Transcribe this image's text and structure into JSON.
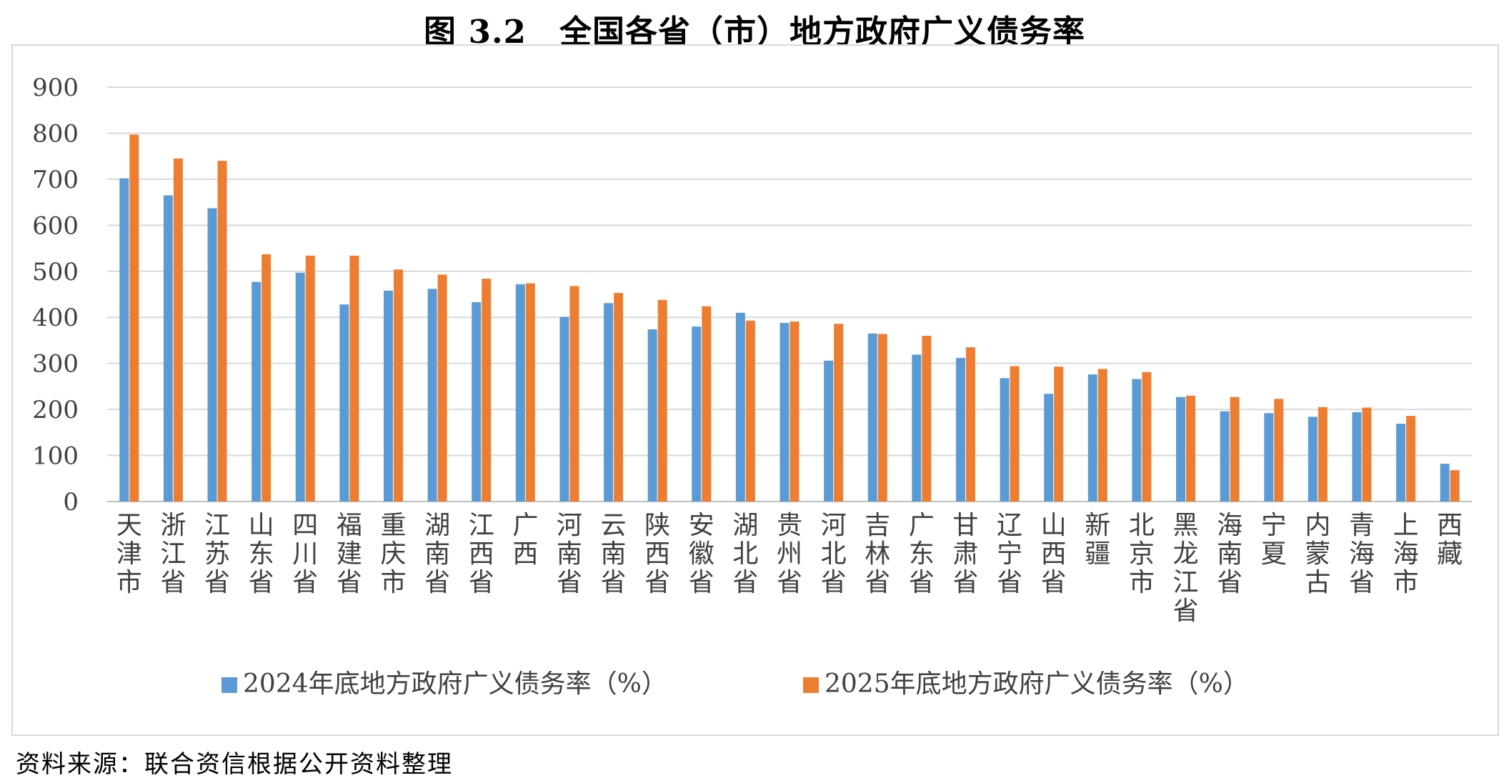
{
  "title": "图 3.2　全国各省（市）地方政府广义债务率",
  "source": "资料来源：联合资信根据公开资料整理",
  "colors": {
    "series_2024": "#5b9bd5",
    "series_2025": "#ed7d31",
    "grid": "#d9d9d9",
    "axis": "#bfbfbf"
  },
  "chart_data": {
    "type": "bar",
    "title": "图 3.2　全国各省（市）地方政府广义债务率",
    "xlabel": "",
    "ylabel": "",
    "ylim": [
      0,
      900
    ],
    "yticks": [
      0,
      100,
      200,
      300,
      400,
      500,
      600,
      700,
      800,
      900
    ],
    "grid": true,
    "legend": "bottom",
    "categories": [
      "天津市",
      "浙江省",
      "江苏省",
      "山东省",
      "四川省",
      "福建省",
      "重庆市",
      "湖南省",
      "江西省",
      "广西",
      "河南省",
      "云南省",
      "陕西省",
      "安徽省",
      "湖北省",
      "贵州省",
      "河北省",
      "吉林省",
      "广东省",
      "甘肃省",
      "辽宁省",
      "山西省",
      "新疆",
      "北京市",
      "黑龙江省",
      "海南省",
      "宁夏",
      "内蒙古",
      "青海省",
      "上海市",
      "西藏"
    ],
    "series": [
      {
        "name": "2024年底地方政府广义债务率（%）",
        "values": [
          702,
          665,
          637,
          477,
          497,
          428,
          458,
          462,
          433,
          472,
          401,
          431,
          374,
          380,
          410,
          388,
          306,
          365,
          319,
          312,
          268,
          234,
          276,
          266,
          227,
          196,
          192,
          184,
          194,
          169,
          82
        ]
      },
      {
        "name": "2025年底地方政府广义债务率（%）",
        "values": [
          797,
          745,
          740,
          537,
          534,
          534,
          504,
          493,
          484,
          474,
          468,
          453,
          438,
          424,
          393,
          391,
          386,
          364,
          360,
          335,
          294,
          293,
          288,
          281,
          230,
          227,
          223,
          205,
          204,
          186,
          68
        ]
      }
    ]
  }
}
